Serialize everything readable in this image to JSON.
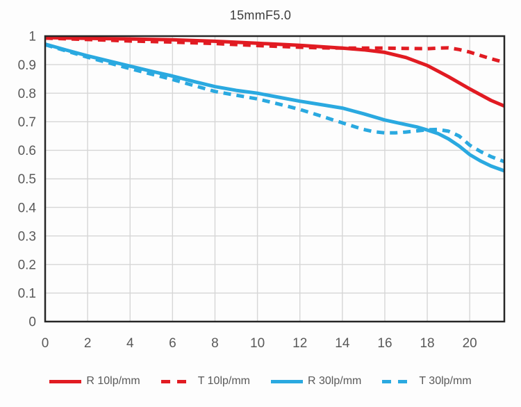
{
  "title": "15mmF5.0",
  "colors": {
    "red": "#e11b22",
    "blue": "#2aa9e0",
    "grid": "#d6d6d6",
    "frame": "#262626",
    "tick_text": "#595959",
    "title_text": "#3d3d3d",
    "background": "#fdfdfd"
  },
  "chart_data": {
    "type": "line",
    "title": "15mmF5.0",
    "xlabel": "",
    "ylabel": "",
    "xlim": [
      0,
      21.63
    ],
    "ylim": [
      0,
      1
    ],
    "grid": true,
    "legend_position": "bottom",
    "x_tick_values": [
      0,
      2,
      4,
      6,
      8,
      10,
      12,
      14,
      16,
      18,
      20
    ],
    "x_tick_labels": [
      "0",
      "2",
      "4",
      "6",
      "8",
      "10",
      "12",
      "14",
      "16",
      "18",
      "20"
    ],
    "y_tick_values": [
      0,
      0.1,
      0.2,
      0.3,
      0.4,
      0.5,
      0.6,
      0.7,
      0.8,
      0.9,
      1
    ],
    "y_tick_labels": [
      "0",
      "0.1",
      "0.2",
      "0.3",
      "0.4",
      "0.5",
      "0.6",
      "0.7",
      "0.8",
      "0.9",
      "1"
    ],
    "series": [
      {
        "name": "R 10lp/mm",
        "color": "#e11b22",
        "style": "solid",
        "x": [
          0,
          2,
          4,
          6,
          8,
          10,
          12,
          13,
          14,
          15,
          16,
          17,
          18,
          19,
          20,
          21,
          21.63
        ],
        "y": [
          0.995,
          0.992,
          0.99,
          0.987,
          0.982,
          0.975,
          0.968,
          0.963,
          0.958,
          0.952,
          0.943,
          0.925,
          0.897,
          0.858,
          0.815,
          0.775,
          0.755
        ]
      },
      {
        "name": "T 10lp/mm",
        "color": "#e11b22",
        "style": "dashed",
        "x": [
          0,
          2,
          4,
          6,
          8,
          10,
          12,
          13,
          14,
          15,
          16,
          17,
          18,
          18.5,
          19,
          19.5,
          20,
          20.5,
          21,
          21.63
        ],
        "y": [
          0.993,
          0.988,
          0.983,
          0.979,
          0.974,
          0.967,
          0.961,
          0.959,
          0.958,
          0.958,
          0.958,
          0.957,
          0.956,
          0.958,
          0.959,
          0.953,
          0.944,
          0.932,
          0.921,
          0.908
        ]
      },
      {
        "name": "R 30lp/mm",
        "color": "#2aa9e0",
        "style": "solid",
        "x": [
          0,
          1,
          2,
          3,
          4,
          5,
          6,
          7,
          8,
          9,
          10,
          11,
          12,
          13,
          14,
          15,
          16,
          17,
          17.5,
          18,
          18.5,
          19,
          19.5,
          20,
          20.5,
          21,
          21.63
        ],
        "y": [
          0.972,
          0.951,
          0.931,
          0.913,
          0.895,
          0.877,
          0.86,
          0.841,
          0.823,
          0.81,
          0.8,
          0.786,
          0.772,
          0.76,
          0.748,
          0.728,
          0.706,
          0.69,
          0.682,
          0.671,
          0.659,
          0.64,
          0.615,
          0.585,
          0.563,
          0.545,
          0.528
        ]
      },
      {
        "name": "T 30lp/mm",
        "color": "#2aa9e0",
        "style": "dashed",
        "x": [
          0,
          1,
          2,
          3,
          4,
          5,
          6,
          7,
          8,
          9,
          10,
          11,
          12,
          13,
          14,
          15,
          15.5,
          16,
          16.5,
          17,
          17.5,
          18,
          18.5,
          19,
          19.5,
          20,
          20.5,
          21,
          21.63
        ],
        "y": [
          0.97,
          0.948,
          0.926,
          0.906,
          0.886,
          0.867,
          0.848,
          0.827,
          0.806,
          0.793,
          0.78,
          0.762,
          0.743,
          0.72,
          0.696,
          0.673,
          0.665,
          0.661,
          0.661,
          0.664,
          0.668,
          0.672,
          0.673,
          0.667,
          0.65,
          0.618,
          0.596,
          0.578,
          0.56
        ]
      }
    ]
  }
}
